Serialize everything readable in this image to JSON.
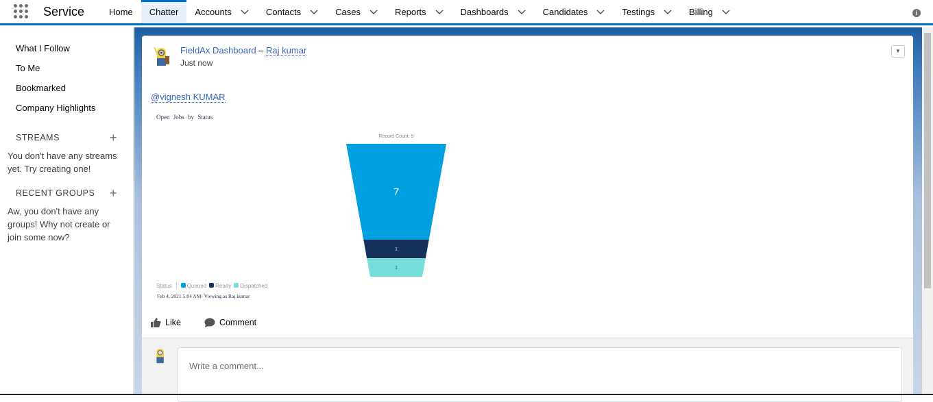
{
  "app": {
    "name": "Service"
  },
  "nav": {
    "tabs": [
      {
        "label": "Home",
        "dropdown": false
      },
      {
        "label": "Chatter",
        "dropdown": false,
        "active": true
      },
      {
        "label": "Accounts",
        "dropdown": true
      },
      {
        "label": "Contacts",
        "dropdown": true
      },
      {
        "label": "Cases",
        "dropdown": true
      },
      {
        "label": "Reports",
        "dropdown": true
      },
      {
        "label": "Dashboards",
        "dropdown": true
      },
      {
        "label": "Candidates",
        "dropdown": true
      },
      {
        "label": "Testings",
        "dropdown": true
      },
      {
        "label": "Billing",
        "dropdown": true
      }
    ]
  },
  "sidebar": {
    "links": [
      "What I Follow",
      "To Me",
      "Bookmarked",
      "Company Highlights"
    ],
    "streams": {
      "title": "STREAMS",
      "empty": "You don't have any streams yet. Try creating one!"
    },
    "groups": {
      "title": "RECENT GROUPS",
      "empty": "Aw, you don't have any groups! Why not create or join some now?"
    }
  },
  "post": {
    "source": "FieldAx Dashboard",
    "separator": " – ",
    "author": "Raj kumar",
    "time": "Just now",
    "mention": "@vignesh KUMAR",
    "like": "Like",
    "comment": "Comment",
    "comment_placeholder": "Write a comment..."
  },
  "chart_data": {
    "type": "funnel",
    "title": "Open Jobs by Status",
    "subtitle": "Record Count: 9",
    "categories": [
      "Queued",
      "Ready",
      "Dispatched"
    ],
    "values": [
      7,
      1,
      1
    ],
    "colors": [
      "#009fdf",
      "#16325c",
      "#76ded9"
    ],
    "label_colors": [
      "#ffffff",
      "#ffffff",
      "#16325c"
    ],
    "legend_title": "Status",
    "legend_position": "bottom-left",
    "footer": "Feb 4, 2021 5:04 AM- Viewing as Raj kumar"
  }
}
